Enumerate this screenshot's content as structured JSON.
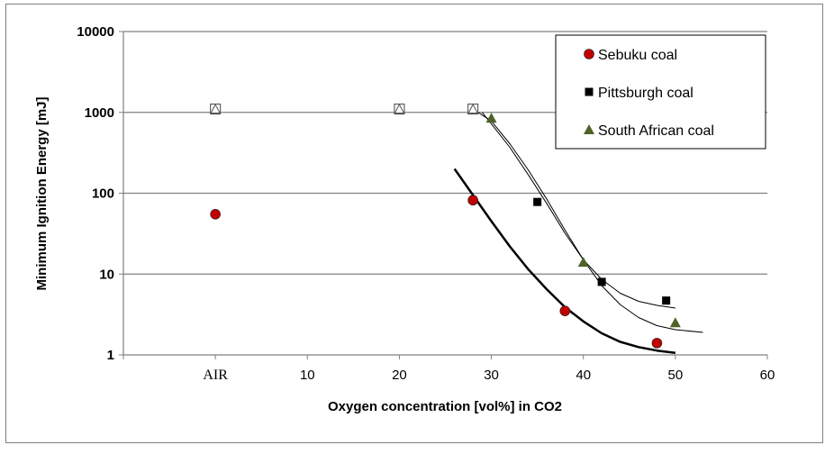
{
  "chart_data": {
    "type": "scatter",
    "xlabel": "Oxygen concentration [vol%] in CO2",
    "ylabel": "Minimum Ignition Energy [mJ]",
    "xlim": [
      -10,
      60
    ],
    "ylim": [
      1,
      10000
    ],
    "yscale": "log",
    "x_ticks": [
      {
        "value": 0,
        "label": "AIR"
      },
      {
        "value": 10,
        "label": "10"
      },
      {
        "value": 20,
        "label": "20"
      },
      {
        "value": 30,
        "label": "30"
      },
      {
        "value": 40,
        "label": "40"
      },
      {
        "value": 50,
        "label": "50"
      },
      {
        "value": 60,
        "label": "60"
      }
    ],
    "y_ticks": [
      {
        "value": 1,
        "label": "1"
      },
      {
        "value": 10,
        "label": "10"
      },
      {
        "value": 100,
        "label": "100"
      },
      {
        "value": 1000,
        "label": "1000"
      },
      {
        "value": 10000,
        "label": "10000"
      }
    ],
    "grid": "horizontal",
    "legend_position": "top-right",
    "series": [
      {
        "name": "Sebuku coal",
        "marker": "circle",
        "color": "#c00000",
        "points": [
          [
            0,
            55
          ],
          [
            28,
            82
          ],
          [
            38,
            3.5
          ],
          [
            48,
            1.4
          ]
        ]
      },
      {
        "name": "Pittsburgh coal",
        "marker": "square",
        "color": "#000000",
        "points": [
          [
            35,
            78
          ],
          [
            42,
            8
          ],
          [
            49,
            4.7
          ]
        ]
      },
      {
        "name": "South African coal",
        "marker": "triangle",
        "color": "#4f6228",
        "points": [
          [
            30,
            850
          ],
          [
            40,
            14
          ],
          [
            50,
            2.5
          ]
        ]
      }
    ],
    "no_ignition_points": [
      [
        0,
        1100
      ],
      [
        20,
        1100
      ],
      [
        28,
        1100
      ]
    ],
    "trend_lines": [
      {
        "for": "Sebuku coal",
        "width": 2.5,
        "points": [
          [
            26,
            200
          ],
          [
            28,
            95
          ],
          [
            30,
            45
          ],
          [
            32,
            22
          ],
          [
            34,
            11.5
          ],
          [
            36,
            6.5
          ],
          [
            38,
            3.9
          ],
          [
            40,
            2.6
          ],
          [
            42,
            1.85
          ],
          [
            44,
            1.45
          ],
          [
            46,
            1.25
          ],
          [
            48,
            1.13
          ],
          [
            50,
            1.06
          ]
        ]
      },
      {
        "for": "Pittsburgh coal",
        "width": 1,
        "points": [
          [
            29,
            1000
          ],
          [
            30,
            720
          ],
          [
            32,
            370
          ],
          [
            34,
            170
          ],
          [
            36,
            75
          ],
          [
            38,
            32
          ],
          [
            40,
            15
          ],
          [
            42,
            8.6
          ],
          [
            44,
            5.8
          ],
          [
            46,
            4.6
          ],
          [
            48,
            4.1
          ],
          [
            50,
            3.8
          ]
        ]
      },
      {
        "for": "South African coal",
        "width": 1,
        "points": [
          [
            28,
            1100
          ],
          [
            30,
            780
          ],
          [
            32,
            410
          ],
          [
            34,
            195
          ],
          [
            36,
            85
          ],
          [
            38,
            35
          ],
          [
            40,
            15
          ],
          [
            42,
            7.2
          ],
          [
            44,
            4.2
          ],
          [
            46,
            2.9
          ],
          [
            48,
            2.3
          ],
          [
            50,
            2.05
          ],
          [
            53,
            1.9
          ]
        ]
      }
    ]
  }
}
